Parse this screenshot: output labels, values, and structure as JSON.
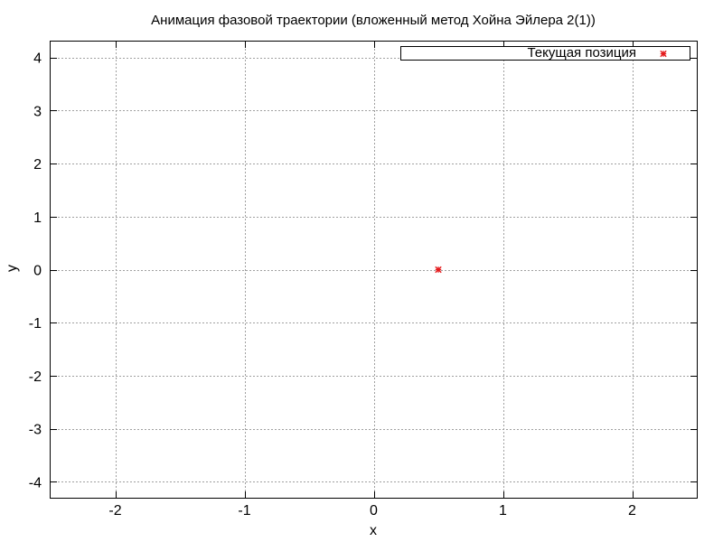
{
  "chart_data": {
    "type": "scatter",
    "title": "Анимация фазовой траектории (вложенный метод Хойна Эйлера 2(1))",
    "xlabel": "x",
    "ylabel": "y",
    "xlim": [
      -2.5,
      2.5
    ],
    "ylim": [
      -4.3,
      4.3
    ],
    "xticks": [
      -2,
      -1,
      0,
      1,
      2
    ],
    "yticks": [
      -4,
      -3,
      -2,
      -1,
      0,
      1,
      2,
      3,
      4
    ],
    "grid": true,
    "legend_position": "top-right",
    "series": [
      {
        "name": "Текущая позиция",
        "color": "#e41a1c",
        "marker": "asterisk",
        "points": [
          {
            "x": 0.5,
            "y": 0.0
          }
        ]
      }
    ]
  }
}
